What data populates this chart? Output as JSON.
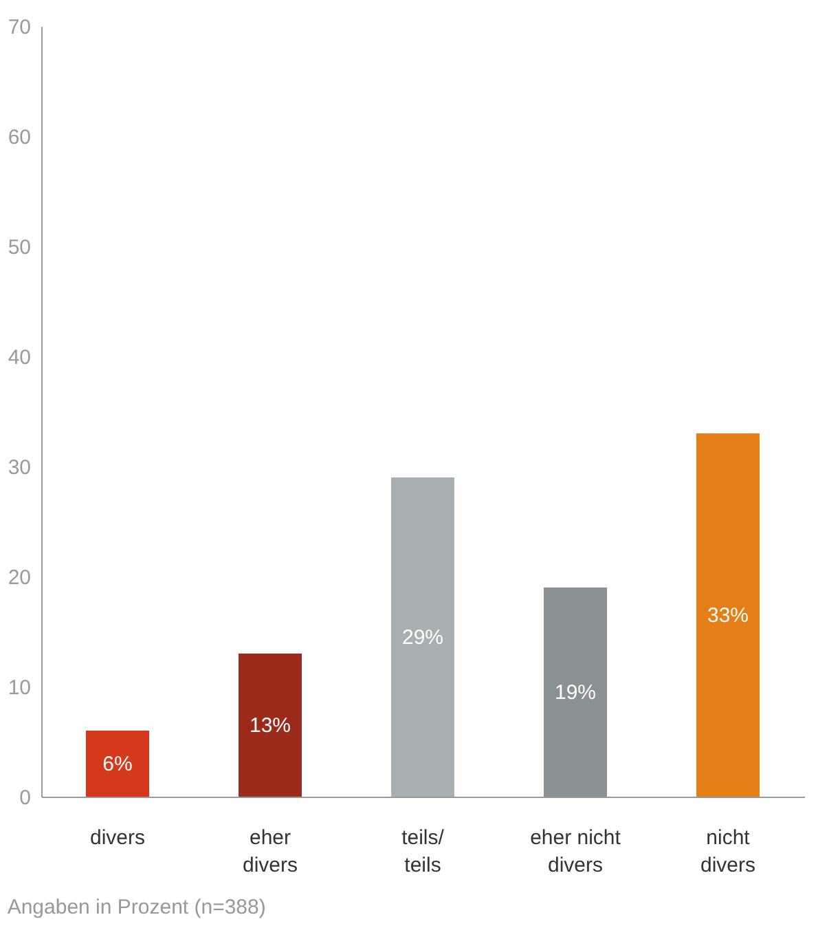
{
  "chart_data": {
    "type": "bar",
    "categories": [
      "divers",
      "eher\ndivers",
      "teils/\nteils",
      "eher nicht\ndivers",
      "nicht\ndivers"
    ],
    "values": [
      6,
      13,
      29,
      19,
      33
    ],
    "colors": [
      "#d5391c",
      "#9b2a1b",
      "#a7afb0",
      "#899193",
      "#e57e17"
    ],
    "ylim": [
      0,
      70
    ],
    "yticks": [
      0,
      10,
      20,
      30,
      40,
      50,
      60,
      70
    ],
    "grid": false,
    "value_labels": [
      "6%",
      "13%",
      "29%",
      "19%",
      "33%"
    ],
    "annotations": [
      "Angaben in Prozent (n=388)"
    ]
  }
}
